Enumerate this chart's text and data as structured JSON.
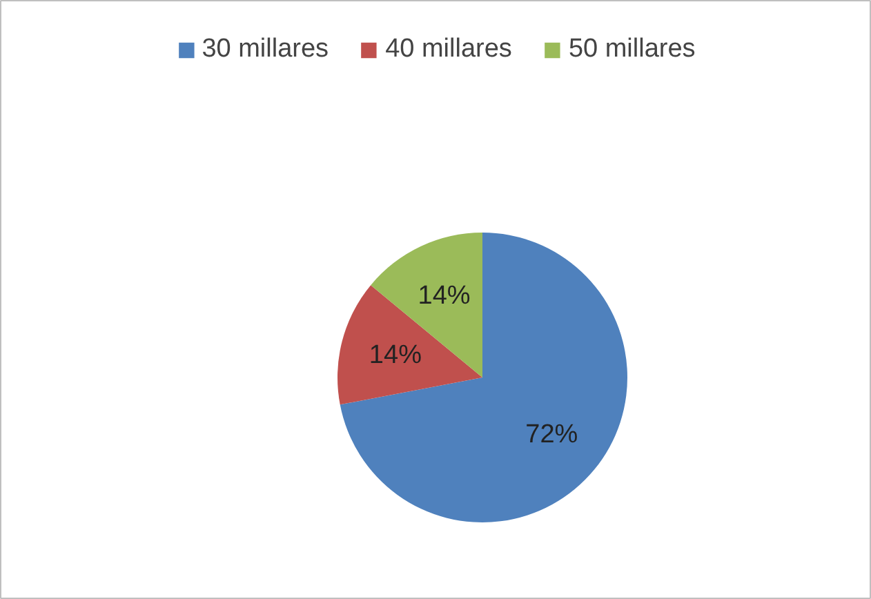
{
  "chart_data": {
    "type": "pie",
    "categories": [
      "30 millares",
      "40 millares",
      "50 millares"
    ],
    "values": [
      72,
      14,
      14
    ],
    "colors": [
      "#4f81bd",
      "#c0504d",
      "#9bbb59"
    ],
    "value_labels": [
      "72%",
      "14%",
      "14%"
    ],
    "legend": "top"
  }
}
